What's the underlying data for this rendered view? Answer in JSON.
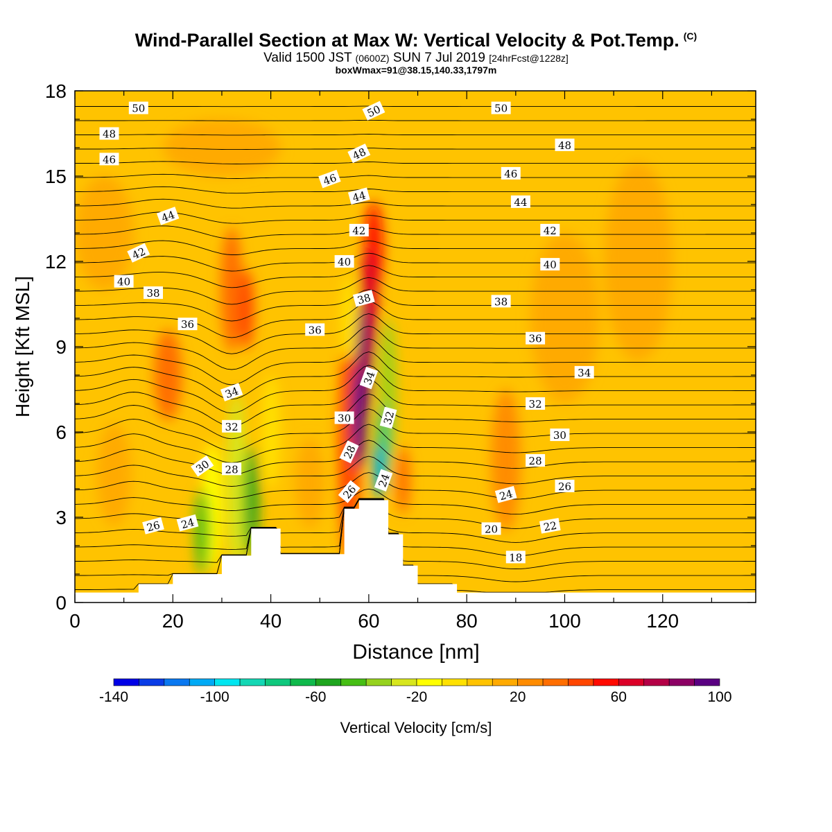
{
  "title": "Wind-Parallel Section at Max W: Vertical Velocity & Pot.Temp.",
  "title_mark": "(C)",
  "subtitle": {
    "lead": "Valid 1500 JST",
    "utc": "(0600Z)",
    "date": "SUN 7 Jul 2019",
    "forecast": "[24hrFcst@1228z]"
  },
  "subtitle2": "boxWmax=91@38.15,140.33,1797m",
  "chart_data": {
    "type": "heatmap",
    "xlabel": "Distance [nm]",
    "ylabel": "Height [Kft MSL]",
    "xlim": [
      0,
      139
    ],
    "ylim": [
      0,
      18
    ],
    "x_ticks": [
      0,
      20,
      40,
      60,
      80,
      100,
      120
    ],
    "y_ticks": [
      0,
      3,
      6,
      9,
      12,
      15,
      18
    ],
    "colorbar": {
      "label": "Vertical Velocity [cm/s]",
      "min": -140,
      "max": 100,
      "step": 10,
      "tick_labels": [
        -140,
        -100,
        -60,
        -20,
        20,
        60,
        100
      ],
      "colors": [
        "#0000e6",
        "#0a3ce6",
        "#0a78f0",
        "#00aaf5",
        "#00e6f0",
        "#14d7b4",
        "#0fc87d",
        "#0fb94b",
        "#1ea51e",
        "#46be14",
        "#96d21e",
        "#d7e61e",
        "#ffff00",
        "#ffe100",
        "#ffc300",
        "#ffaa00",
        "#ff8c00",
        "#ff6e00",
        "#ff4600",
        "#ff0a00",
        "#dc0028",
        "#b40046",
        "#8c0064",
        "#5a0082"
      ]
    },
    "terrain": [
      [
        0,
        0.35
      ],
      [
        13,
        0.35
      ],
      [
        13,
        0.65
      ],
      [
        20,
        0.65
      ],
      [
        20,
        1.0
      ],
      [
        30,
        1.0
      ],
      [
        30,
        1.65
      ],
      [
        36,
        1.65
      ],
      [
        36,
        2.6
      ],
      [
        42,
        2.6
      ],
      [
        42,
        1.7
      ],
      [
        55,
        1.7
      ],
      [
        55,
        3.3
      ],
      [
        58,
        3.3
      ],
      [
        58,
        3.6
      ],
      [
        64,
        3.6
      ],
      [
        64,
        2.4
      ],
      [
        67,
        2.4
      ],
      [
        67,
        1.3
      ],
      [
        70,
        1.3
      ],
      [
        70,
        0.65
      ],
      [
        78,
        0.65
      ],
      [
        78,
        0.35
      ],
      [
        139,
        0.35
      ]
    ],
    "wfield": [
      {
        "x": 8,
        "y": 4.5,
        "w": 3.5,
        "h": 1.8,
        "v": 10
      },
      {
        "x": 19,
        "y": 8.0,
        "w": 2.8,
        "h": 1.6,
        "v": 30
      },
      {
        "x": 32,
        "y": 11.0,
        "w": 2.2,
        "h": 2.2,
        "v": 30
      },
      {
        "x": 35,
        "y": 10.3,
        "w": 1.5,
        "h": 1.4,
        "v": 40
      },
      {
        "x": 28,
        "y": 3.4,
        "w": 2.0,
        "h": 2.2,
        "v": -20
      },
      {
        "x": 33,
        "y": 4.2,
        "w": 2.0,
        "h": 3.2,
        "v": -30
      },
      {
        "x": 36,
        "y": 3.5,
        "w": 1.5,
        "h": 2.0,
        "v": -60
      },
      {
        "x": 26,
        "y": 2.5,
        "w": 1.5,
        "h": 1.5,
        "v": -50
      },
      {
        "x": 40,
        "y": 6.0,
        "w": 1.8,
        "h": 2.0,
        "v": -10
      },
      {
        "x": 48,
        "y": 4.2,
        "w": 3.0,
        "h": 1.6,
        "v": 10
      },
      {
        "x": 56,
        "y": 5.5,
        "w": 2.2,
        "h": 4.0,
        "v": 40
      },
      {
        "x": 61,
        "y": 12.5,
        "w": 1.8,
        "h": 1.6,
        "v": 50
      },
      {
        "x": 60,
        "y": 10.5,
        "w": 1.8,
        "h": 2.0,
        "v": 60
      },
      {
        "x": 59,
        "y": 8.5,
        "w": 1.6,
        "h": 2.0,
        "v": 80
      },
      {
        "x": 58,
        "y": 6.5,
        "w": 1.5,
        "h": 1.8,
        "v": 90
      },
      {
        "x": 56,
        "y": 10.0,
        "w": 1.5,
        "h": 1.5,
        "v": -10
      },
      {
        "x": 64,
        "y": 7.5,
        "w": 1.5,
        "h": 2.5,
        "v": -40
      },
      {
        "x": 63,
        "y": 5.5,
        "w": 1.2,
        "h": 1.5,
        "v": -80
      },
      {
        "x": 62,
        "y": 4.6,
        "w": 1.0,
        "h": 1.0,
        "v": -110
      },
      {
        "x": 67,
        "y": 4.3,
        "w": 1.4,
        "h": 1.2,
        "v": 30
      },
      {
        "x": 88,
        "y": 5.0,
        "w": 3.0,
        "h": 2.5,
        "v": 20
      },
      {
        "x": 100,
        "y": 10.0,
        "w": 7.0,
        "h": 3.0,
        "v": 10
      },
      {
        "x": 115,
        "y": 12.0,
        "w": 7.0,
        "h": 3.5,
        "v": 10
      },
      {
        "x": 30,
        "y": 16.0,
        "w": 12.0,
        "h": 1.0,
        "v": 10
      },
      {
        "x": 6,
        "y": 13.0,
        "w": 6.0,
        "h": 2.0,
        "v": 10
      }
    ],
    "contour_levels": [
      18,
      19,
      20,
      21,
      22,
      23,
      24,
      25,
      26,
      27,
      28,
      29,
      30,
      31,
      32,
      33,
      34,
      35,
      36,
      37,
      38,
      39,
      40,
      41,
      42,
      43,
      44,
      45,
      46,
      47,
      48,
      49,
      50,
      51,
      52
    ],
    "contour_labels": [
      {
        "x": 13,
        "y": 17.4,
        "text": "50",
        "rot": 0
      },
      {
        "x": 61,
        "y": 17.3,
        "text": "50",
        "rot": -25
      },
      {
        "x": 87,
        "y": 17.4,
        "text": "50",
        "rot": 0
      },
      {
        "x": 7,
        "y": 16.5,
        "text": "48",
        "rot": 0
      },
      {
        "x": 58,
        "y": 15.8,
        "text": "48",
        "rot": -25
      },
      {
        "x": 100,
        "y": 16.1,
        "text": "48",
        "rot": 0
      },
      {
        "x": 7,
        "y": 15.6,
        "text": "46",
        "rot": 0
      },
      {
        "x": 52,
        "y": 14.9,
        "text": "46",
        "rot": -20
      },
      {
        "x": 89,
        "y": 15.1,
        "text": "46",
        "rot": 0
      },
      {
        "x": 58,
        "y": 14.3,
        "text": "44",
        "rot": -15
      },
      {
        "x": 19,
        "y": 13.6,
        "text": "44",
        "rot": -20
      },
      {
        "x": 91,
        "y": 14.1,
        "text": "44",
        "rot": 0
      },
      {
        "x": 58,
        "y": 13.1,
        "text": "42",
        "rot": 0
      },
      {
        "x": 97,
        "y": 13.1,
        "text": "42",
        "rot": 0
      },
      {
        "x": 13,
        "y": 12.3,
        "text": "42",
        "rot": -25
      },
      {
        "x": 55,
        "y": 12.0,
        "text": "40",
        "rot": 0
      },
      {
        "x": 97,
        "y": 11.9,
        "text": "40",
        "rot": 0
      },
      {
        "x": 10,
        "y": 11.3,
        "text": "40",
        "rot": 0
      },
      {
        "x": 59,
        "y": 10.7,
        "text": "38",
        "rot": -15
      },
      {
        "x": 16,
        "y": 10.9,
        "text": "38",
        "rot": 0
      },
      {
        "x": 87,
        "y": 10.6,
        "text": "38",
        "rot": 0
      },
      {
        "x": 23,
        "y": 9.8,
        "text": "36",
        "rot": 0
      },
      {
        "x": 49,
        "y": 9.6,
        "text": "36",
        "rot": 0
      },
      {
        "x": 94,
        "y": 9.3,
        "text": "36",
        "rot": 0
      },
      {
        "x": 104,
        "y": 8.1,
        "text": "34",
        "rot": 0
      },
      {
        "x": 60,
        "y": 7.9,
        "text": "34",
        "rot": -70
      },
      {
        "x": 32,
        "y": 7.4,
        "text": "34",
        "rot": -20
      },
      {
        "x": 94,
        "y": 7.0,
        "text": "32",
        "rot": 0
      },
      {
        "x": 32,
        "y": 6.2,
        "text": "32",
        "rot": 0
      },
      {
        "x": 64,
        "y": 6.5,
        "text": "32",
        "rot": -75
      },
      {
        "x": 55,
        "y": 6.5,
        "text": "30",
        "rot": 0
      },
      {
        "x": 99,
        "y": 5.9,
        "text": "30",
        "rot": 0
      },
      {
        "x": 26,
        "y": 4.8,
        "text": "30",
        "rot": -35
      },
      {
        "x": 32,
        "y": 4.7,
        "text": "28",
        "rot": 0
      },
      {
        "x": 56,
        "y": 5.3,
        "text": "28",
        "rot": -65
      },
      {
        "x": 94,
        "y": 5.0,
        "text": "28",
        "rot": 0
      },
      {
        "x": 63,
        "y": 4.3,
        "text": "24",
        "rot": -70
      },
      {
        "x": 100,
        "y": 4.1,
        "text": "26",
        "rot": 0
      },
      {
        "x": 56,
        "y": 3.9,
        "text": "26",
        "rot": -50
      },
      {
        "x": 88,
        "y": 3.8,
        "text": "24",
        "rot": -15
      },
      {
        "x": 16,
        "y": 2.7,
        "text": "26",
        "rot": -15
      },
      {
        "x": 23,
        "y": 2.8,
        "text": "24",
        "rot": -15
      },
      {
        "x": 85,
        "y": 2.6,
        "text": "20",
        "rot": 0
      },
      {
        "x": 97,
        "y": 2.7,
        "text": "22",
        "rot": -10
      },
      {
        "x": 90,
        "y": 1.6,
        "text": "18",
        "rot": 0
      }
    ]
  }
}
